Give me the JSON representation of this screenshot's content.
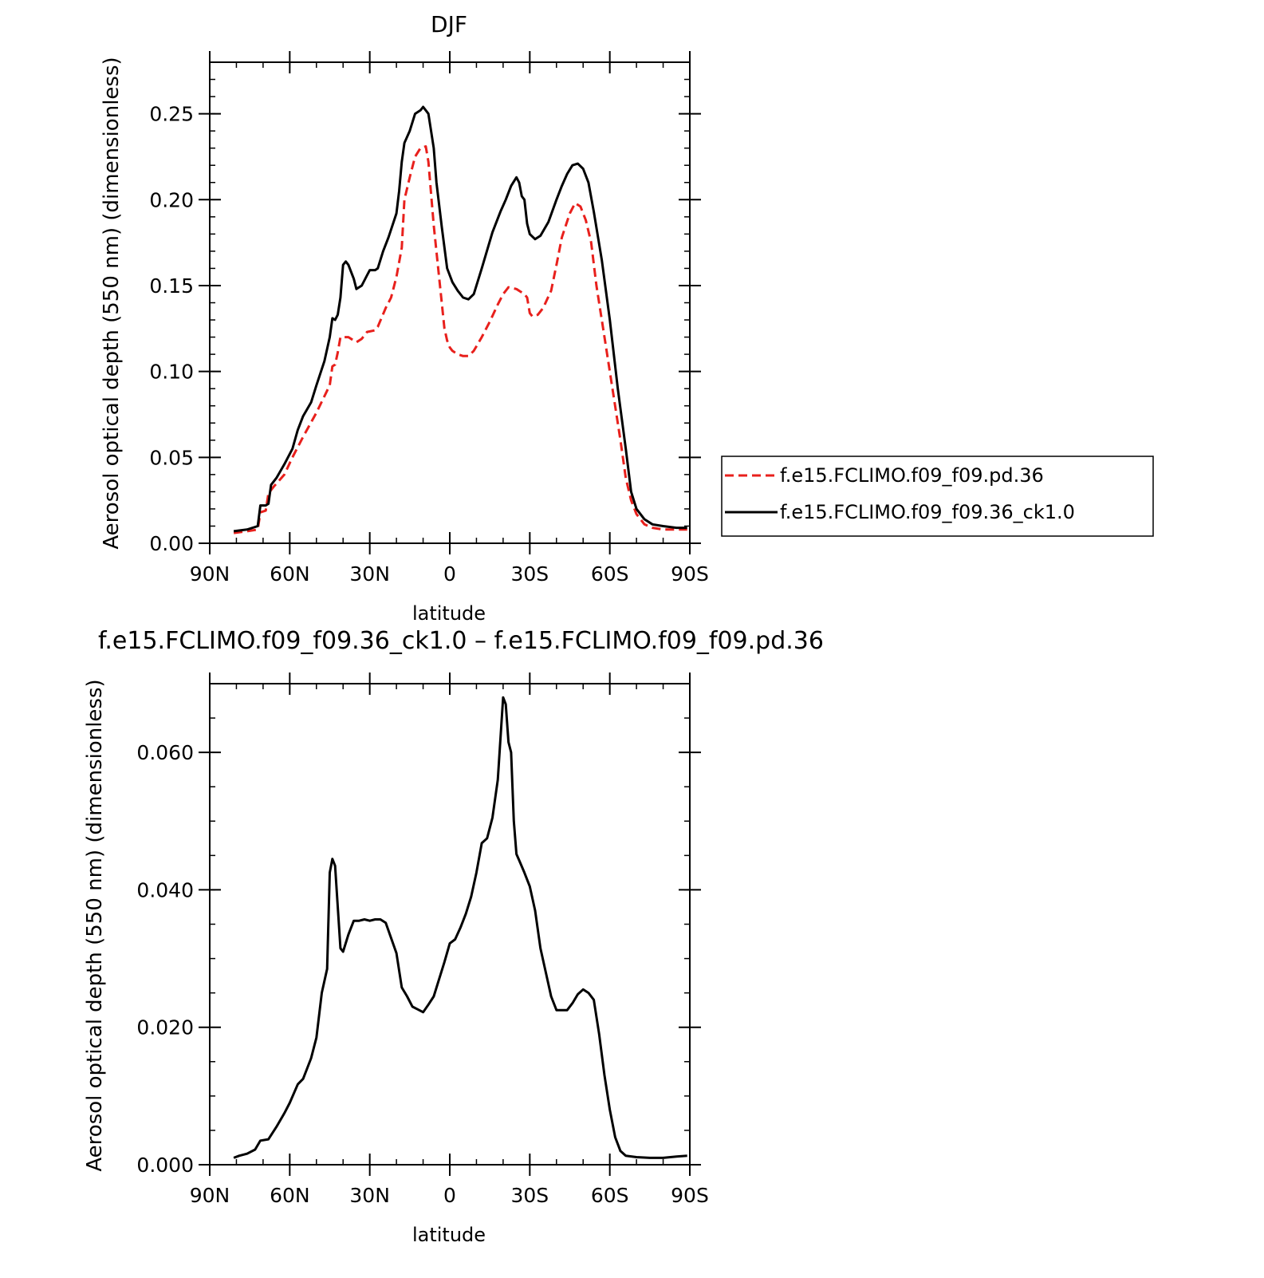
{
  "chart_data": [
    {
      "type": "line",
      "title": "DJF",
      "xlabel": "latitude",
      "ylabel": "Aerosol optical depth (550 nm) (dimensionless)",
      "xlim": [
        90,
        -90
      ],
      "ylim": [
        0,
        0.28
      ],
      "x_ticks": [
        {
          "value": 90,
          "label": "90N"
        },
        {
          "value": 60,
          "label": "60N"
        },
        {
          "value": 30,
          "label": "30N"
        },
        {
          "value": 0,
          "label": "0"
        },
        {
          "value": -30,
          "label": "30S"
        },
        {
          "value": -60,
          "label": "60S"
        },
        {
          "value": -90,
          "label": "90S"
        }
      ],
      "y_ticks": [
        {
          "value": 0,
          "label": "0.00"
        },
        {
          "value": 0.05,
          "label": "0.05"
        },
        {
          "value": 0.1,
          "label": "0.10"
        },
        {
          "value": 0.15,
          "label": "0.15"
        },
        {
          "value": 0.2,
          "label": "0.20"
        },
        {
          "value": 0.25,
          "label": "0.25"
        }
      ],
      "legend": "right",
      "series": [
        {
          "name": "f.e15.FCLIMO.f09_f09.pd.36",
          "color": "#e8201c",
          "dash": true,
          "points": [
            [
              81,
              0.006
            ],
            [
              76,
              0.007
            ],
            [
              72,
              0.008
            ],
            [
              71,
              0.018
            ],
            [
              69,
              0.019
            ],
            [
              68,
              0.029
            ],
            [
              66,
              0.033
            ],
            [
              62,
              0.04
            ],
            [
              59,
              0.05
            ],
            [
              55,
              0.062
            ],
            [
              50,
              0.076
            ],
            [
              45,
              0.092
            ],
            [
              44,
              0.103
            ],
            [
              43,
              0.104
            ],
            [
              42,
              0.111
            ],
            [
              41,
              0.12
            ],
            [
              38,
              0.12
            ],
            [
              35,
              0.117
            ],
            [
              33,
              0.119
            ],
            [
              31,
              0.123
            ],
            [
              28,
              0.124
            ],
            [
              27,
              0.126
            ],
            [
              24,
              0.137
            ],
            [
              22,
              0.143
            ],
            [
              20,
              0.155
            ],
            [
              18,
              0.172
            ],
            [
              17,
              0.2
            ],
            [
              15,
              0.213
            ],
            [
              13,
              0.225
            ],
            [
              11,
              0.23
            ],
            [
              9,
              0.231
            ],
            [
              8,
              0.222
            ],
            [
              6,
              0.185
            ],
            [
              4,
              0.155
            ],
            [
              2,
              0.125
            ],
            [
              1,
              0.118
            ],
            [
              0,
              0.114
            ],
            [
              -1,
              0.112
            ],
            [
              -3,
              0.11
            ],
            [
              -5,
              0.109
            ],
            [
              -7,
              0.109
            ],
            [
              -9,
              0.112
            ],
            [
              -12,
              0.12
            ],
            [
              -15,
              0.129
            ],
            [
              -18,
              0.139
            ],
            [
              -20,
              0.145
            ],
            [
              -22,
              0.149
            ],
            [
              -25,
              0.148
            ],
            [
              -28,
              0.145
            ],
            [
              -29,
              0.143
            ],
            [
              -30,
              0.134
            ],
            [
              -31,
              0.132
            ],
            [
              -33,
              0.133
            ],
            [
              -35,
              0.137
            ],
            [
              -38,
              0.147
            ],
            [
              -40,
              0.162
            ],
            [
              -42,
              0.178
            ],
            [
              -45,
              0.192
            ],
            [
              -47,
              0.198
            ],
            [
              -49,
              0.196
            ],
            [
              -51,
              0.188
            ],
            [
              -53,
              0.175
            ],
            [
              -55,
              0.15
            ],
            [
              -58,
              0.12
            ],
            [
              -61,
              0.09
            ],
            [
              -64,
              0.06
            ],
            [
              -66,
              0.038
            ],
            [
              -68,
              0.025
            ],
            [
              -70,
              0.017
            ],
            [
              -73,
              0.011
            ],
            [
              -76,
              0.009
            ],
            [
              -80,
              0.008
            ],
            [
              -85,
              0.008
            ],
            [
              -89,
              0.008
            ]
          ]
        },
        {
          "name": "f.e15.FCLIMO.f09_f09.36_ck1.0",
          "color": "#000000",
          "dash": false,
          "points": [
            [
              81,
              0.007
            ],
            [
              76,
              0.008
            ],
            [
              72,
              0.01
            ],
            [
              71,
              0.022
            ],
            [
              69,
              0.022
            ],
            [
              68,
              0.023
            ],
            [
              67,
              0.034
            ],
            [
              65,
              0.038
            ],
            [
              62,
              0.046
            ],
            [
              59,
              0.055
            ],
            [
              57,
              0.066
            ],
            [
              55,
              0.074
            ],
            [
              52,
              0.082
            ],
            [
              50,
              0.092
            ],
            [
              47,
              0.106
            ],
            [
              45,
              0.12
            ],
            [
              44,
              0.131
            ],
            [
              43,
              0.13
            ],
            [
              42,
              0.133
            ],
            [
              41,
              0.143
            ],
            [
              40,
              0.162
            ],
            [
              39,
              0.164
            ],
            [
              38,
              0.162
            ],
            [
              36,
              0.154
            ],
            [
              35,
              0.148
            ],
            [
              33,
              0.15
            ],
            [
              31,
              0.156
            ],
            [
              30,
              0.159
            ],
            [
              28,
              0.159
            ],
            [
              27,
              0.16
            ],
            [
              25,
              0.17
            ],
            [
              23,
              0.178
            ],
            [
              20,
              0.192
            ],
            [
              19,
              0.205
            ],
            [
              18,
              0.222
            ],
            [
              17,
              0.233
            ],
            [
              15,
              0.24
            ],
            [
              13,
              0.25
            ],
            [
              11,
              0.252
            ],
            [
              10,
              0.254
            ],
            [
              8,
              0.25
            ],
            [
              6,
              0.23
            ],
            [
              5,
              0.21
            ],
            [
              3,
              0.184
            ],
            [
              1,
              0.16
            ],
            [
              -1,
              0.152
            ],
            [
              -3,
              0.147
            ],
            [
              -5,
              0.143
            ],
            [
              -7,
              0.142
            ],
            [
              -9,
              0.145
            ],
            [
              -12,
              0.16
            ],
            [
              -16,
              0.181
            ],
            [
              -19,
              0.193
            ],
            [
              -21,
              0.2
            ],
            [
              -23,
              0.208
            ],
            [
              -25,
              0.213
            ],
            [
              -26,
              0.21
            ],
            [
              -27,
              0.202
            ],
            [
              -28,
              0.2
            ],
            [
              -29,
              0.186
            ],
            [
              -30,
              0.18
            ],
            [
              -32,
              0.177
            ],
            [
              -34,
              0.179
            ],
            [
              -37,
              0.187
            ],
            [
              -40,
              0.2
            ],
            [
              -42,
              0.208
            ],
            [
              -44,
              0.215
            ],
            [
              -46,
              0.22
            ],
            [
              -48,
              0.221
            ],
            [
              -50,
              0.218
            ],
            [
              -52,
              0.21
            ],
            [
              -54,
              0.193
            ],
            [
              -57,
              0.165
            ],
            [
              -60,
              0.13
            ],
            [
              -63,
              0.09
            ],
            [
              -66,
              0.055
            ],
            [
              -68,
              0.03
            ],
            [
              -70,
              0.02
            ],
            [
              -73,
              0.014
            ],
            [
              -76,
              0.011
            ],
            [
              -80,
              0.01
            ],
            [
              -85,
              0.009
            ],
            [
              -89,
              0.009
            ]
          ]
        }
      ]
    },
    {
      "type": "line",
      "title": "f.e15.FCLIMO.f09_f09.36_ck1.0 – f.e15.FCLIMO.f09_f09.pd.36",
      "xlabel": "latitude",
      "ylabel": "Aerosol optical depth (550 nm) (dimensionless)",
      "xlim": [
        90,
        -90
      ],
      "ylim": [
        0,
        0.07
      ],
      "x_ticks": [
        {
          "value": 90,
          "label": "90N"
        },
        {
          "value": 60,
          "label": "60N"
        },
        {
          "value": 30,
          "label": "30N"
        },
        {
          "value": 0,
          "label": "0"
        },
        {
          "value": -30,
          "label": "30S"
        },
        {
          "value": -60,
          "label": "60S"
        },
        {
          "value": -90,
          "label": "90S"
        }
      ],
      "y_ticks": [
        {
          "value": 0,
          "label": "0.000"
        },
        {
          "value": 0.02,
          "label": "0.020"
        },
        {
          "value": 0.04,
          "label": "0.040"
        },
        {
          "value": 0.06,
          "label": "0.060"
        }
      ],
      "series": [
        {
          "color": "#000000",
          "dash": false,
          "points": [
            [
              81,
              0.001
            ],
            [
              79,
              0.0013
            ],
            [
              76,
              0.0016
            ],
            [
              73,
              0.0022
            ],
            [
              71,
              0.0035
            ],
            [
              68,
              0.0037
            ],
            [
              65,
              0.0055
            ],
            [
              62,
              0.0075
            ],
            [
              60,
              0.009
            ],
            [
              57,
              0.0117
            ],
            [
              55,
              0.0125
            ],
            [
              52,
              0.0155
            ],
            [
              50,
              0.0185
            ],
            [
              48,
              0.025
            ],
            [
              46,
              0.0285
            ],
            [
              45,
              0.0425
            ],
            [
              44,
              0.0445
            ],
            [
              43,
              0.0435
            ],
            [
              41,
              0.0315
            ],
            [
              40,
              0.031
            ],
            [
              38,
              0.0335
            ],
            [
              36,
              0.0355
            ],
            [
              34,
              0.0355
            ],
            [
              32,
              0.0357
            ],
            [
              30,
              0.0355
            ],
            [
              28,
              0.0357
            ],
            [
              26,
              0.0357
            ],
            [
              24,
              0.0352
            ],
            [
              22,
              0.033
            ],
            [
              20,
              0.0308
            ],
            [
              18,
              0.0258
            ],
            [
              16,
              0.0245
            ],
            [
              14,
              0.023
            ],
            [
              12,
              0.0226
            ],
            [
              10,
              0.0222
            ],
            [
              8,
              0.0233
            ],
            [
              6,
              0.0245
            ],
            [
              4,
              0.027
            ],
            [
              2,
              0.0295
            ],
            [
              0,
              0.0322
            ],
            [
              -2,
              0.0328
            ],
            [
              -4,
              0.0345
            ],
            [
              -6,
              0.0365
            ],
            [
              -8,
              0.039
            ],
            [
              -10,
              0.0425
            ],
            [
              -12,
              0.0468
            ],
            [
              -14,
              0.0475
            ],
            [
              -16,
              0.0505
            ],
            [
              -18,
              0.056
            ],
            [
              -20,
              0.068
            ],
            [
              -21,
              0.067
            ],
            [
              -22,
              0.0615
            ],
            [
              -23,
              0.06
            ],
            [
              -24,
              0.05
            ],
            [
              -25,
              0.0452
            ],
            [
              -26,
              0.0443
            ],
            [
              -28,
              0.0425
            ],
            [
              -30,
              0.0405
            ],
            [
              -32,
              0.037
            ],
            [
              -34,
              0.0315
            ],
            [
              -36,
              0.028
            ],
            [
              -38,
              0.0245
            ],
            [
              -40,
              0.0225
            ],
            [
              -42,
              0.0225
            ],
            [
              -44,
              0.0225
            ],
            [
              -46,
              0.0235
            ],
            [
              -48,
              0.0248
            ],
            [
              -50,
              0.0255
            ],
            [
              -52,
              0.025
            ],
            [
              -54,
              0.024
            ],
            [
              -56,
              0.019
            ],
            [
              -58,
              0.013
            ],
            [
              -60,
              0.008
            ],
            [
              -62,
              0.004
            ],
            [
              -64,
              0.002
            ],
            [
              -66,
              0.0013
            ],
            [
              -70,
              0.0011
            ],
            [
              -75,
              0.001
            ],
            [
              -80,
              0.001
            ],
            [
              -85,
              0.0012
            ],
            [
              -89,
              0.0013
            ]
          ]
        }
      ]
    }
  ]
}
